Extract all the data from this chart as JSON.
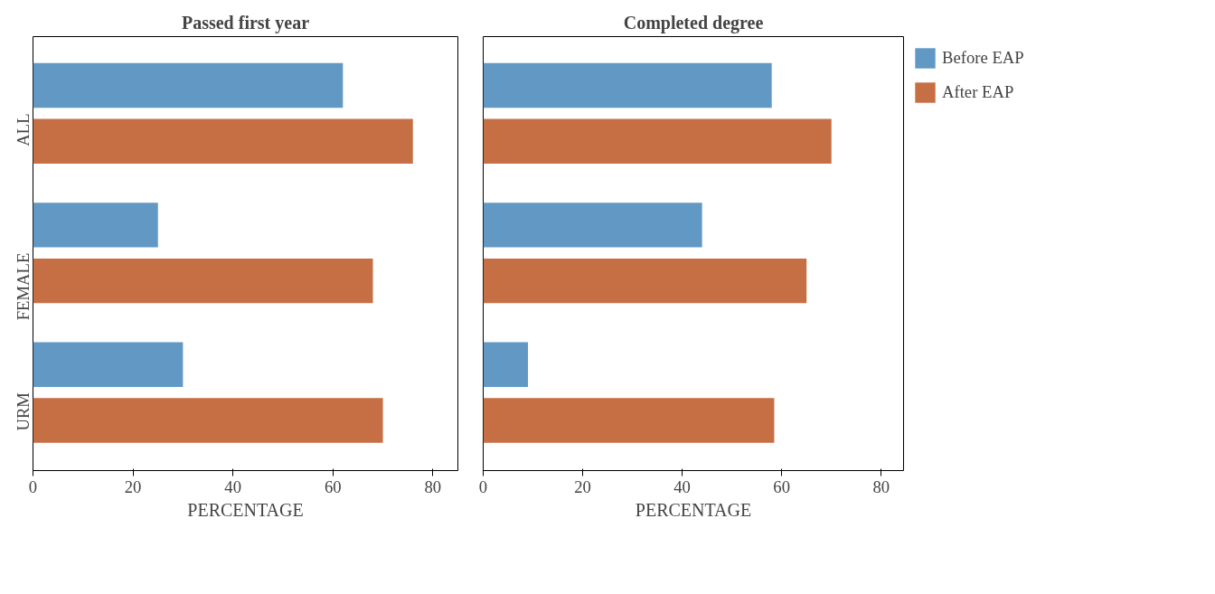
{
  "chart_data": [
    {
      "type": "bar",
      "orientation": "horizontal",
      "title": "Passed first year",
      "xlabel": "PERCENTAGE",
      "categories": [
        "ALL",
        "FEMALE",
        "URM"
      ],
      "xlim": [
        0,
        85
      ],
      "xticks": [
        0,
        20,
        40,
        60,
        80
      ],
      "grid": false,
      "legend": false,
      "series": [
        {
          "color": "#6198c4",
          "values": [
            62,
            25,
            30
          ]
        },
        {
          "color": "#c66e44",
          "values": [
            76,
            68,
            70
          ]
        }
      ]
    },
    {
      "type": "bar",
      "orientation": "horizontal",
      "title": "Completed degree",
      "xlabel": "PERCENTAGE",
      "categories": [
        null,
        null,
        null
      ],
      "xlim": [
        0,
        84.5
      ],
      "xticks": [
        0,
        20,
        40,
        60,
        80
      ],
      "grid": false,
      "legend": "right",
      "tick_labels": "x",
      "series": [
        {
          "name": "Before EAP",
          "color": "#6198c4",
          "values": [
            58,
            44,
            9
          ]
        },
        {
          "name": "After EAP",
          "color": "#c66e44",
          "values": [
            70,
            65,
            58.5
          ]
        }
      ]
    }
  ]
}
